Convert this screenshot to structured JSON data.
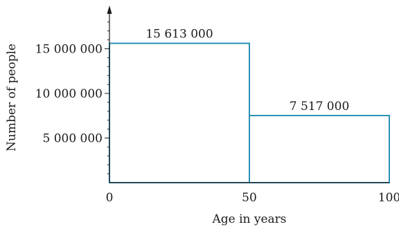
{
  "chart_data": {
    "type": "bar",
    "xlabel": "Age in years",
    "ylabel": "Number of people",
    "x_ticks": [
      "0",
      "50",
      "100"
    ],
    "y_ticks": [
      "5 000 000",
      "10 000 000",
      "15 000 000"
    ],
    "ylim": [
      0,
      20000000
    ],
    "xlim": [
      0,
      100
    ],
    "bars": [
      {
        "x_start": 0,
        "x_end": 50,
        "value": 15613000,
        "label": "15 613 000"
      },
      {
        "x_start": 50,
        "x_end": 100,
        "value": 7517000,
        "label": "7 517 000"
      }
    ],
    "bar_color": "#2a8fb5",
    "grid": false
  }
}
